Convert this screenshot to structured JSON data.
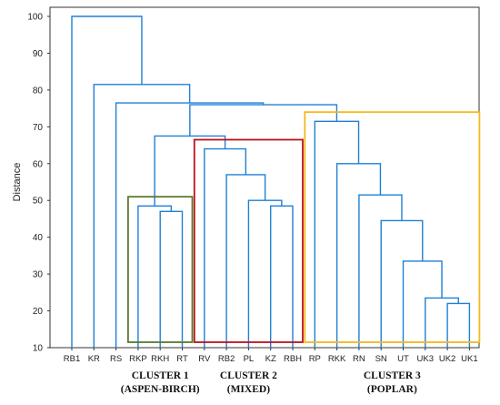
{
  "chart_data": {
    "type": "dendrogram",
    "ylabel": "Distance",
    "ylim": [
      10,
      100
    ],
    "yticks": [
      "10",
      "20",
      "30",
      "40",
      "50",
      "60",
      "70",
      "80",
      "90",
      "100"
    ],
    "leaves": [
      "RB1",
      "KR",
      "RS",
      "RKP",
      "RKH",
      "RT",
      "RV",
      "RB2",
      "PL",
      "KZ",
      "RBH",
      "RP",
      "RKK",
      "RN",
      "SN",
      "UT",
      "UK3",
      "UK2",
      "UK1"
    ],
    "merges": [
      {
        "a": "UK2",
        "b": "UK1",
        "height": 22.0,
        "id": "m1"
      },
      {
        "a": "UK3",
        "b": "m1",
        "height": 23.5,
        "id": "m2"
      },
      {
        "a": "UT",
        "b": "m2",
        "height": 33.5,
        "id": "m3"
      },
      {
        "a": "SN",
        "b": "m3",
        "height": 44.5,
        "id": "m4"
      },
      {
        "a": "RN",
        "b": "m4",
        "height": 51.5,
        "id": "m5"
      },
      {
        "a": "RKK",
        "b": "m5",
        "height": 60.0,
        "id": "m6"
      },
      {
        "a": "RP",
        "b": "m6",
        "height": 71.5,
        "id": "m7"
      },
      {
        "a": "RKH",
        "b": "RT",
        "height": 47.0,
        "id": "m8"
      },
      {
        "a": "RKP",
        "b": "m8",
        "height": 48.5,
        "id": "m9"
      },
      {
        "a": "KZ",
        "b": "RBH",
        "height": 48.5,
        "id": "m10"
      },
      {
        "a": "PL",
        "b": "m10",
        "height": 50.0,
        "id": "m11"
      },
      {
        "a": "RB2",
        "b": "m11",
        "height": 57.0,
        "id": "m12"
      },
      {
        "a": "RV",
        "b": "m12",
        "height": 64.0,
        "id": "m13"
      },
      {
        "a": "m9",
        "b": "m13",
        "height": 67.5,
        "id": "m14"
      },
      {
        "a": "m14",
        "b": "m7",
        "height": 76.0,
        "id": "m15"
      },
      {
        "a": "RS",
        "b": "m15",
        "height": 76.5,
        "id": "m16"
      },
      {
        "a": "KR",
        "b": "m16",
        "height": 81.5,
        "id": "m17"
      },
      {
        "a": "RB1",
        "b": "m17",
        "height": 100.0,
        "id": "m18"
      }
    ],
    "clusters": [
      {
        "title": "CLUSTER 1",
        "subtitle": "(ASPEN-BIRCH)",
        "color": "#5a7a2e",
        "from": "RKP",
        "to": "RT",
        "top": 51
      },
      {
        "title": "CLUSTER 2",
        "subtitle": "(MIXED)",
        "color": "#c0101a",
        "from": "RV",
        "to": "RBH",
        "top": 66.5
      },
      {
        "title": "CLUSTER 3",
        "subtitle": "(POPLAR)",
        "color": "#f2b81e",
        "from": "RP",
        "to": "UK1",
        "top": 74
      }
    ],
    "line_color": "#1f7fd6",
    "axis_color": "#333333"
  }
}
